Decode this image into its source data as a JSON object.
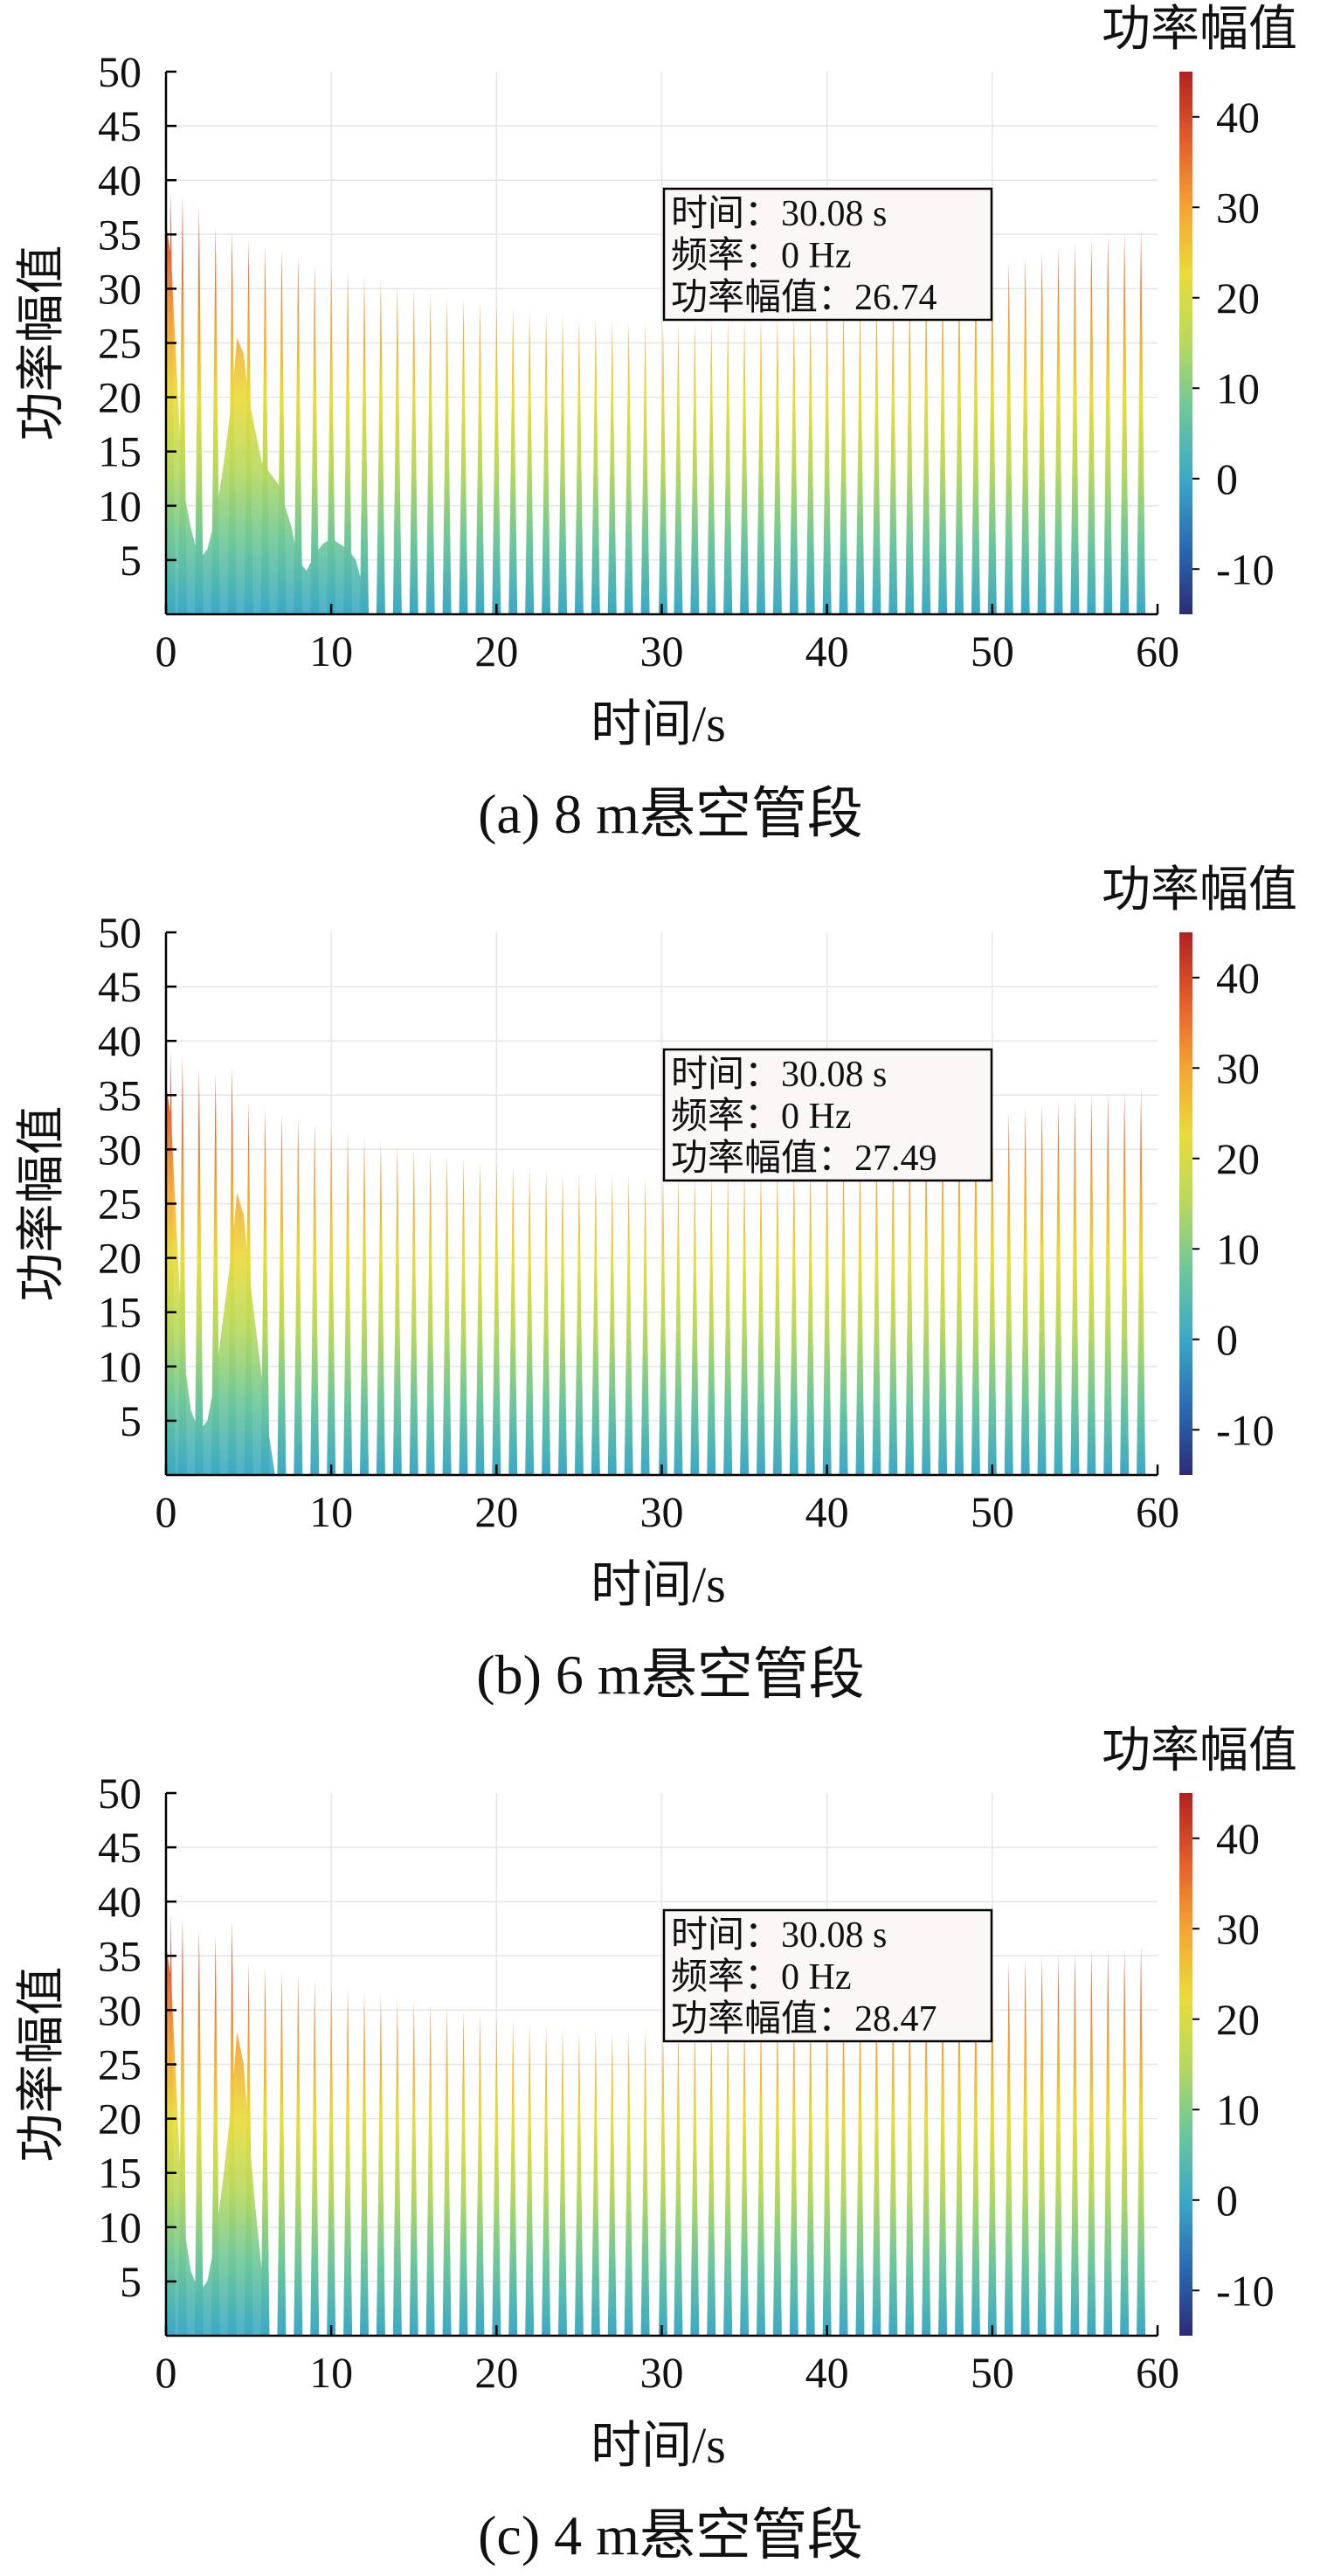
{
  "colorbar": {
    "title": "功率幅值",
    "ticks": [
      40,
      30,
      20,
      10,
      0,
      -10
    ],
    "range": [
      -15,
      45
    ],
    "colors": [
      "#2b2c78",
      "#2a6ab3",
      "#3aa9c7",
      "#6cc79a",
      "#b7d95d",
      "#eadb3a",
      "#f5a432",
      "#e45c2a",
      "#b22020"
    ]
  },
  "chart_data": [
    {
      "type": "area",
      "caption": "(a)  8 m悬空管段",
      "xlabel": "时间/s",
      "ylabel": "功率幅值",
      "xlim": [
        0,
        60
      ],
      "ylim": [
        0,
        50
      ],
      "xticks": [
        0,
        10,
        20,
        30,
        40,
        50,
        60
      ],
      "yticks": [
        5,
        10,
        15,
        20,
        25,
        30,
        35,
        40,
        45,
        50
      ],
      "grid": true,
      "peak_times": [
        0.3,
        1.0,
        2.0,
        3.0,
        4.0,
        5.0,
        6.0,
        7.0,
        8.0,
        9.0,
        10.0,
        11.0,
        12.0,
        13.0,
        14.0,
        15.0,
        16.0,
        17.0,
        18.0,
        19.0,
        20.0,
        21.0,
        22.0,
        23.0,
        24.0,
        25.0,
        26.0,
        27.0,
        28.0,
        29.0,
        30.08,
        31.0,
        32.0,
        33.0,
        34.0,
        35.0,
        36.0,
        37.0,
        38.0,
        39.0,
        40.0,
        41.0,
        42.0,
        43.0,
        44.0,
        45.0,
        46.0,
        47.0,
        48.0,
        49.0,
        50.0,
        51.0,
        52.0,
        53.0,
        54.0,
        55.0,
        56.0,
        57.0,
        58.0,
        59.0
      ],
      "peak_values": [
        39.0,
        38.5,
        37.5,
        35.8,
        35.4,
        34.6,
        34.0,
        33.6,
        33.0,
        32.4,
        32.0,
        31.6,
        31.2,
        30.8,
        30.4,
        30.0,
        29.6,
        29.2,
        29.0,
        28.8,
        28.6,
        28.3,
        28.0,
        27.8,
        27.6,
        27.4,
        27.3,
        27.1,
        27.0,
        26.8,
        26.74,
        26.8,
        26.9,
        27.0,
        27.1,
        27.2,
        27.4,
        27.6,
        27.8,
        28.0,
        28.2,
        28.5,
        28.8,
        29.1,
        29.5,
        29.9,
        30.3,
        30.7,
        31.1,
        31.6,
        32.1,
        32.5,
        33.0,
        33.4,
        33.8,
        34.2,
        34.6,
        35.0,
        35.2,
        35.4
      ],
      "envelope_t": [
        0,
        0.3,
        0.6,
        1.0,
        1.5,
        2.0,
        2.5,
        3.0,
        3.5,
        4.0,
        4.3,
        4.7,
        5.0,
        5.4,
        5.8,
        6.3,
        6.8,
        7.2,
        7.6,
        8.0,
        8.5,
        9.0,
        9.5,
        10.0,
        10.5,
        11.0,
        11.5,
        12.0,
        12.3
      ],
      "envelope_v": [
        36,
        33,
        24,
        12,
        8,
        5,
        6,
        9,
        14,
        20,
        25.5,
        24,
        20,
        17,
        14,
        13,
        12,
        10,
        8,
        5,
        4,
        5.5,
        6.5,
        7,
        6.5,
        6,
        5,
        2,
        0
      ],
      "tooltip": {
        "time": "时间：30.08 s",
        "freq": "频率：0 Hz",
        "power": "功率幅值：26.74"
      }
    },
    {
      "type": "area",
      "caption": "(b)  6 m悬空管段",
      "xlabel": "时间/s",
      "ylabel": "功率幅值",
      "xlim": [
        0,
        60
      ],
      "ylim": [
        0,
        50
      ],
      "xticks": [
        0,
        10,
        20,
        30,
        40,
        50,
        60
      ],
      "yticks": [
        5,
        10,
        15,
        20,
        25,
        30,
        35,
        40,
        45,
        50
      ],
      "grid": true,
      "peak_times": [
        0.3,
        1.0,
        2.0,
        3.0,
        4.0,
        5.0,
        6.0,
        7.0,
        8.0,
        9.0,
        10.0,
        11.0,
        12.0,
        13.0,
        14.0,
        15.0,
        16.0,
        17.0,
        18.0,
        19.0,
        20.0,
        21.0,
        22.0,
        23.0,
        24.0,
        25.0,
        26.0,
        27.0,
        28.0,
        29.0,
        30.08,
        31.0,
        32.0,
        33.0,
        34.0,
        35.0,
        36.0,
        37.0,
        38.0,
        39.0,
        40.0,
        41.0,
        42.0,
        43.0,
        44.0,
        45.0,
        46.0,
        47.0,
        48.0,
        49.0,
        50.0,
        51.0,
        52.0,
        53.0,
        54.0,
        55.0,
        56.0,
        57.0,
        58.0,
        59.0
      ],
      "peak_values": [
        39.0,
        38.5,
        37.5,
        37.0,
        37.6,
        34.4,
        33.8,
        33.3,
        32.9,
        32.5,
        32.0,
        31.6,
        31.2,
        30.8,
        30.4,
        30.1,
        29.8,
        29.5,
        29.2,
        29.0,
        28.8,
        28.6,
        28.4,
        28.2,
        28.0,
        27.9,
        27.8,
        27.7,
        27.6,
        27.5,
        27.49,
        27.6,
        27.7,
        27.9,
        28.0,
        28.2,
        28.4,
        28.6,
        28.9,
        29.1,
        29.4,
        29.7,
        30.0,
        30.3,
        30.7,
        31.1,
        31.5,
        31.9,
        32.3,
        32.7,
        33.1,
        33.5,
        33.9,
        34.2,
        34.5,
        34.8,
        35.0,
        35.2,
        35.4,
        35.6
      ],
      "envelope_t": [
        0,
        0.3,
        0.6,
        1.0,
        1.5,
        2.0,
        2.5,
        3.0,
        3.5,
        4.0,
        4.3,
        4.7,
        5.0,
        5.4,
        5.8,
        6.2,
        6.6
      ],
      "envelope_v": [
        36,
        33,
        24,
        12,
        6,
        4,
        5,
        9,
        15,
        21,
        26,
        24,
        19,
        14,
        9,
        4,
        0
      ],
      "tooltip": {
        "time": "时间：30.08 s",
        "freq": "频率：0 Hz",
        "power": "功率幅值：27.49"
      }
    },
    {
      "type": "area",
      "caption": "(c)  4 m悬空管段",
      "xlabel": "时间/s",
      "ylabel": "功率幅值",
      "xlim": [
        0,
        60
      ],
      "ylim": [
        0,
        50
      ],
      "xticks": [
        0,
        10,
        20,
        30,
        40,
        50,
        60
      ],
      "yticks": [
        5,
        10,
        15,
        20,
        25,
        30,
        35,
        40,
        45,
        50
      ],
      "grid": true,
      "peak_times": [
        0.3,
        1.0,
        2.0,
        3.0,
        4.0,
        5.0,
        6.0,
        7.0,
        8.0,
        9.0,
        10.0,
        11.0,
        12.0,
        13.0,
        14.0,
        15.0,
        16.0,
        17.0,
        18.0,
        19.0,
        20.0,
        21.0,
        22.0,
        23.0,
        24.0,
        25.0,
        26.0,
        27.0,
        28.0,
        29.0,
        30.08,
        31.0,
        32.0,
        33.0,
        34.0,
        35.0,
        36.0,
        37.0,
        38.0,
        39.0,
        40.0,
        41.0,
        42.0,
        43.0,
        44.0,
        45.0,
        46.0,
        47.0,
        48.0,
        49.0,
        50.0,
        51.0,
        52.0,
        53.0,
        54.0,
        55.0,
        56.0,
        57.0,
        58.0,
        59.0
      ],
      "peak_values": [
        39.0,
        38.5,
        37.5,
        37.0,
        38.2,
        34.3,
        34.0,
        33.6,
        33.2,
        32.8,
        32.4,
        32.1,
        31.8,
        31.5,
        31.2,
        30.9,
        30.6,
        30.3,
        30.0,
        29.7,
        29.4,
        29.1,
        28.8,
        28.6,
        28.4,
        28.3,
        28.2,
        28.1,
        28.1,
        28.3,
        28.47,
        28.7,
        28.9,
        29.2,
        29.4,
        29.7,
        30.0,
        30.3,
        30.6,
        30.9,
        31.2,
        31.5,
        31.8,
        32.1,
        32.4,
        32.7,
        33.0,
        33.3,
        33.6,
        33.9,
        34.2,
        34.5,
        34.8,
        35.0,
        35.2,
        35.4,
        35.6,
        35.7,
        35.8,
        36.0
      ],
      "envelope_t": [
        0,
        0.3,
        0.6,
        1.0,
        1.5,
        2.0,
        2.5,
        3.0,
        3.5,
        4.0,
        4.3,
        4.7,
        5.0,
        5.4,
        5.8,
        6.2
      ],
      "envelope_v": [
        36,
        33,
        24,
        11,
        6,
        4,
        5,
        9,
        15,
        22,
        28,
        25,
        19,
        12,
        6,
        0
      ],
      "tooltip": {
        "time": "时间：30.08 s",
        "freq": "频率：0 Hz",
        "power": "功率幅值：28.47"
      }
    }
  ]
}
